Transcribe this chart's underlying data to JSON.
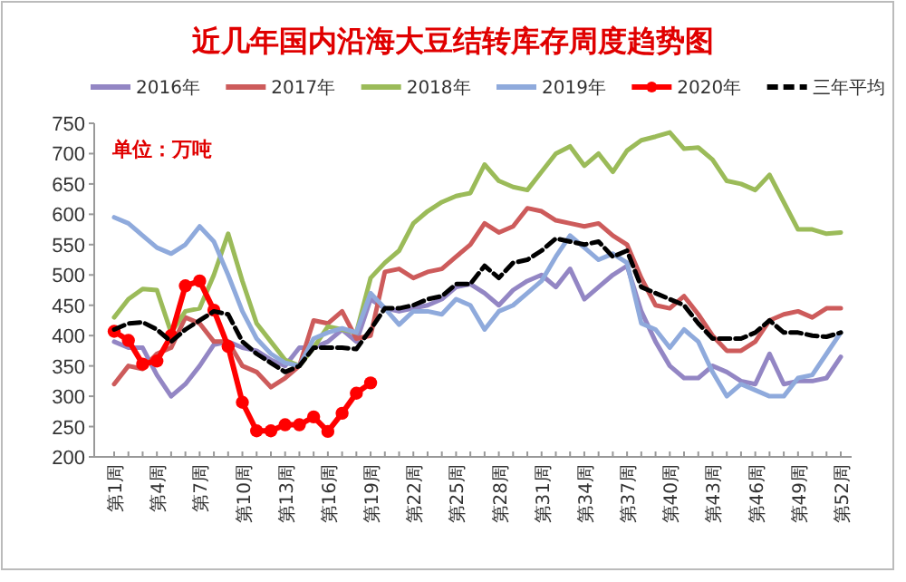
{
  "chart_data": {
    "type": "line",
    "title": "近几年国内沿海大豆结转库存周度趋势图",
    "annotations": [
      "单位：万吨"
    ],
    "categories": [
      "第1周",
      null,
      null,
      "第4周",
      null,
      null,
      "第7周",
      null,
      null,
      "第10周",
      null,
      null,
      "第13周",
      null,
      null,
      "第16周",
      null,
      null,
      "第19周",
      null,
      null,
      "第22周",
      null,
      null,
      "第25周",
      null,
      null,
      "第28周",
      null,
      null,
      "第31周",
      null,
      null,
      "第34周",
      null,
      null,
      "第37周",
      null,
      null,
      "第40周",
      null,
      null,
      "第43周",
      null,
      null,
      "第46周",
      null,
      null,
      "第49周",
      null,
      null,
      "第52周"
    ],
    "ylim": [
      200,
      750
    ],
    "yticks": [
      200,
      250,
      300,
      350,
      400,
      450,
      500,
      550,
      600,
      650,
      700,
      750
    ],
    "grid": false,
    "legend": "top",
    "marker": "none",
    "line_style": "solid",
    "series": [
      {
        "name": "2016年",
        "color": "#9386c4",
        "values": [
          390,
          380,
          380,
          335,
          300,
          320,
          350,
          385,
          390,
          380,
          375,
          360,
          350,
          380,
          380,
          390,
          410,
          390,
          460,
          445,
          440,
          445,
          450,
          460,
          480,
          485,
          470,
          450,
          475,
          490,
          500,
          480,
          510,
          460,
          480,
          500,
          515,
          440,
          390,
          350,
          330,
          330,
          350,
          340,
          325,
          320,
          370,
          320,
          325,
          325,
          330,
          365
        ]
      },
      {
        "name": "2017年",
        "color": "#cd5b5b",
        "values": [
          320,
          350,
          345,
          370,
          380,
          430,
          420,
          390,
          390,
          350,
          340,
          315,
          330,
          350,
          425,
          420,
          440,
          395,
          400,
          505,
          510,
          495,
          505,
          510,
          530,
          550,
          585,
          570,
          580,
          610,
          605,
          590,
          585,
          580,
          585,
          565,
          550,
          495,
          450,
          445,
          465,
          435,
          400,
          375,
          375,
          390,
          425,
          435,
          440,
          430,
          445,
          445
        ]
      },
      {
        "name": "2018年",
        "color": "#9bbb59",
        "values": [
          430,
          460,
          477,
          475,
          405,
          440,
          445,
          500,
          568,
          490,
          420,
          390,
          360,
          350,
          380,
          415,
          410,
          405,
          495,
          520,
          540,
          585,
          605,
          620,
          630,
          635,
          682,
          655,
          645,
          640,
          670,
          700,
          712,
          680,
          700,
          670,
          705,
          722,
          728,
          735,
          708,
          710,
          690,
          655,
          650,
          640,
          665,
          620,
          575,
          575,
          568,
          570
        ]
      },
      {
        "name": "2019年",
        "color": "#8faadc",
        "values": [
          595,
          585,
          565,
          545,
          535,
          550,
          580,
          555,
          500,
          440,
          395,
          370,
          355,
          350,
          395,
          405,
          412,
          405,
          470,
          445,
          418,
          440,
          440,
          435,
          460,
          450,
          410,
          440,
          450,
          470,
          490,
          530,
          565,
          545,
          525,
          535,
          520,
          420,
          410,
          380,
          410,
          390,
          340,
          300,
          320,
          310,
          300,
          300,
          330,
          335,
          370,
          405
        ]
      },
      {
        "name": "2020年",
        "color": "#ff0000",
        "marker": "circle",
        "values": [
          407,
          392,
          353,
          358,
          400,
          482,
          490,
          442,
          382,
          290,
          243,
          243,
          253,
          253,
          266,
          242,
          272,
          305,
          322,
          null,
          null,
          null,
          null,
          null,
          null,
          null,
          null,
          null,
          null,
          null,
          null,
          null,
          null,
          null,
          null,
          null,
          null,
          null,
          null,
          null,
          null,
          null,
          null,
          null,
          null,
          null,
          null,
          null,
          null,
          null,
          null,
          null
        ]
      },
      {
        "name": "三年平均",
        "color": "#000000",
        "line_style": "dashed",
        "values": [
          410,
          420,
          422,
          410,
          390,
          410,
          425,
          440,
          435,
          390,
          370,
          355,
          340,
          350,
          380,
          380,
          380,
          378,
          410,
          445,
          445,
          450,
          460,
          465,
          485,
          485,
          515,
          495,
          520,
          525,
          540,
          560,
          555,
          550,
          555,
          530,
          540,
          480,
          470,
          460,
          450,
          420,
          395,
          395,
          395,
          405,
          425,
          405,
          405,
          400,
          398,
          405
        ]
      }
    ]
  }
}
